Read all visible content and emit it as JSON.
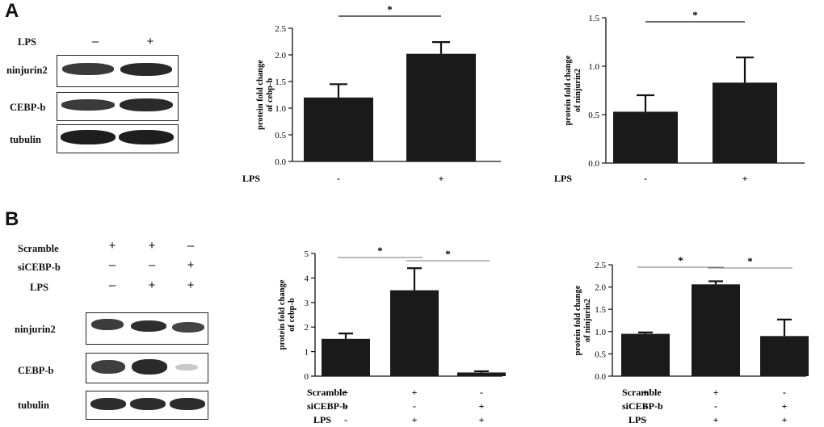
{
  "panels": {
    "a": "A",
    "b": "B"
  },
  "blot_a": {
    "condition_row": {
      "label": "LPS",
      "signs": [
        "–",
        "+"
      ]
    },
    "bands": [
      "ninjurin2",
      "CEBP-b",
      "tubulin"
    ]
  },
  "blot_b": {
    "condition_rows": [
      {
        "label": "Scramble",
        "signs": [
          "+",
          "+",
          "–"
        ]
      },
      {
        "label": "siCEBP-b",
        "signs": [
          "–",
          "–",
          "+"
        ]
      },
      {
        "label": "LPS",
        "signs": [
          "–",
          "+",
          "+"
        ]
      }
    ],
    "bands": [
      "ninjurin2",
      "CEBP-b",
      "tubulin"
    ]
  },
  "chart_data": [
    {
      "id": "A-cebpb",
      "type": "bar",
      "title": "",
      "ylabel": [
        "protein fold change",
        "of cebp-b"
      ],
      "ylim": [
        0,
        2.5
      ],
      "yticks": [
        "0.0",
        "0.5",
        "1.0",
        "1.5",
        "2.0",
        "2.5"
      ],
      "categories": [
        "-",
        "+"
      ],
      "condition_labels": [
        "LPS"
      ],
      "condition_rows": [
        [
          "-",
          "+"
        ]
      ],
      "values": [
        1.2,
        2.02
      ],
      "errors": [
        0.25,
        0.22
      ],
      "bar_color": "#1a1a1a",
      "significance": [
        {
          "from": 0,
          "to": 1,
          "label": "*"
        }
      ]
    },
    {
      "id": "A-ninjurin2",
      "type": "bar",
      "title": "",
      "ylabel": [
        "protein fold change",
        "of ninjurin2"
      ],
      "ylim": [
        0,
        1.5
      ],
      "yticks": [
        "0.0",
        "0.5",
        "1.0",
        "1.5"
      ],
      "categories": [
        "-",
        "+"
      ],
      "condition_labels": [
        "LPS"
      ],
      "condition_rows": [
        [
          "-",
          "+"
        ]
      ],
      "values": [
        0.53,
        0.83
      ],
      "errors": [
        0.17,
        0.26
      ],
      "bar_color": "#1a1a1a",
      "significance": [
        {
          "from": 0,
          "to": 1,
          "label": "*"
        }
      ]
    },
    {
      "id": "B-cebpb",
      "type": "bar",
      "title": "",
      "ylabel": [
        "protein fold change",
        "of cebp-b"
      ],
      "ylim": [
        0,
        5
      ],
      "yticks": [
        "0",
        "1",
        "2",
        "3",
        "4",
        "5"
      ],
      "categories": [
        "Scramble+ LPS-",
        "Scramble+ LPS+",
        "siCEBP-b+ LPS+"
      ],
      "condition_labels": [
        "Scramble",
        "siCEBP-b",
        "LPS"
      ],
      "condition_rows": [
        [
          "+",
          "+",
          "-"
        ],
        [
          "-",
          "-",
          "+"
        ],
        [
          "-",
          "+",
          "+"
        ]
      ],
      "values": [
        1.52,
        3.5,
        0.15
      ],
      "errors": [
        0.22,
        0.9,
        0.05
      ],
      "bar_color": "#1a1a1a",
      "significance": [
        {
          "from": 0,
          "to": 1,
          "label": "*"
        },
        {
          "from": 1,
          "to": 2,
          "label": "*"
        }
      ]
    },
    {
      "id": "B-ninjurin2",
      "type": "bar",
      "title": "",
      "ylabel": [
        "protein fold change",
        "of ninjurin2"
      ],
      "ylim": [
        0,
        2.5
      ],
      "yticks": [
        "0.0",
        "0.5",
        "1.0",
        "1.5",
        "2.0",
        "2.5"
      ],
      "categories": [
        "Scramble+ LPS-",
        "Scramble+ LPS+",
        "siCEBP-b+ LPS+"
      ],
      "condition_labels": [
        "Scramble",
        "siCEBP-b",
        "LPS"
      ],
      "condition_rows": [
        [
          "+",
          "+",
          "-"
        ],
        [
          "-",
          "-",
          "+"
        ],
        [
          "-",
          "+",
          "+"
        ]
      ],
      "values": [
        0.95,
        2.06,
        0.9
      ],
      "errors": [
        0.03,
        0.07,
        0.37
      ],
      "bar_color": "#1a1a1a",
      "significance": [
        {
          "from": 0,
          "to": 1,
          "label": "*"
        },
        {
          "from": 1,
          "to": 2,
          "label": "*"
        }
      ]
    }
  ]
}
